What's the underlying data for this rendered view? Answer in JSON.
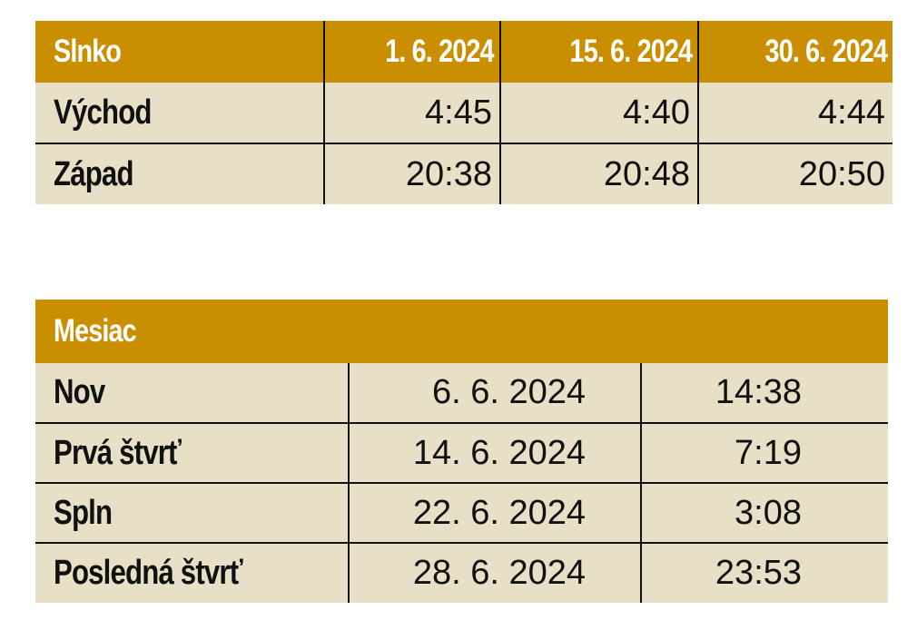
{
  "sun": {
    "header_label": "Slnko",
    "dates": [
      "1. 6. 2024",
      "15. 6. 2024",
      "30. 6. 2024"
    ],
    "rows": [
      {
        "label": "Východ",
        "values": [
          "4:45",
          "4:40",
          "4:44"
        ]
      },
      {
        "label": "Západ",
        "values": [
          "20:38",
          "20:48",
          "20:50"
        ]
      }
    ]
  },
  "moon": {
    "header_label": "Mesiac",
    "rows": [
      {
        "label": "Nov",
        "date": "6. 6. 2024",
        "time": "14:38"
      },
      {
        "label": "Prvá štvrť",
        "date": "14. 6. 2024",
        "time": "7:19"
      },
      {
        "label": "Spln",
        "date": "22. 6. 2024",
        "time": "3:08"
      },
      {
        "label": "Posledná štvrť",
        "date": "28. 6. 2024",
        "time": "23:53"
      }
    ]
  },
  "colors": {
    "header_bg": "#c98f00",
    "cell_bg": "#e8dfc7",
    "header_text": "#ffffff",
    "text": "#111111"
  }
}
